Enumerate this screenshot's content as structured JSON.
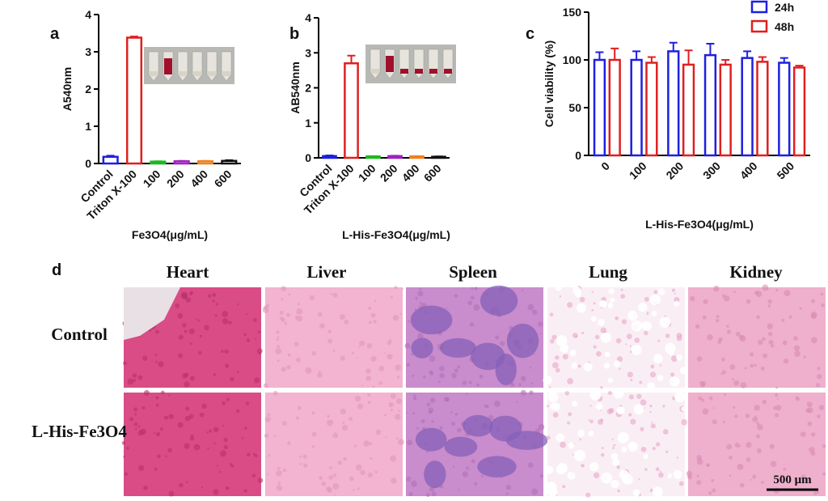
{
  "chart_data": [
    {
      "type": "bar",
      "panel": "a",
      "ylabel": "A540nm",
      "xlabel": "Fe3O4(μg/mL)",
      "categories": [
        "Control",
        "Triton X-100",
        "100",
        "200",
        "400",
        "600"
      ],
      "values": [
        0.18,
        3.38,
        0.05,
        0.06,
        0.06,
        0.07
      ],
      "errors": [
        0.03,
        0.03,
        0.01,
        0.01,
        0.01,
        0.02
      ],
      "colors": [
        "#1f1fe0",
        "#e01f1f",
        "#1fb81f",
        "#a020c0",
        "#f08020",
        "#111111"
      ],
      "ylim": [
        0,
        4
      ],
      "yticks": [
        0,
        1,
        2,
        3,
        4
      ]
    },
    {
      "type": "bar",
      "panel": "b",
      "ylabel": "AB540nm",
      "xlabel": "L-His-Fe3O4(μg/mL)",
      "categories": [
        "Control",
        "Triton X-100",
        "100",
        "200",
        "400",
        "600"
      ],
      "values": [
        0.05,
        2.7,
        0.04,
        0.05,
        0.04,
        0.03
      ],
      "errors": [
        0.02,
        0.22,
        0.01,
        0.01,
        0.01,
        0.01
      ],
      "colors": [
        "#1f1fe0",
        "#e01f1f",
        "#1fb81f",
        "#a020c0",
        "#f08020",
        "#111111"
      ],
      "ylim": [
        0,
        4
      ],
      "yticks": [
        0,
        1,
        2,
        3,
        4
      ]
    },
    {
      "type": "grouped_bar",
      "panel": "c",
      "ylabel": "Cell viability (%)",
      "xlabel": "L-His-Fe3O4(μg/mL)",
      "categories": [
        "0",
        "100",
        "200",
        "300",
        "400",
        "500"
      ],
      "series": [
        {
          "name": "24h",
          "color": "#1f1fe0",
          "values": [
            100,
            100,
            109,
            105,
            102,
            97
          ],
          "errors": [
            8,
            9,
            9,
            12,
            7,
            5
          ]
        },
        {
          "name": "48h",
          "color": "#e01f1f",
          "values": [
            100,
            97,
            95,
            95,
            98,
            92
          ],
          "errors": [
            12,
            6,
            15,
            5,
            5,
            2
          ]
        }
      ],
      "ylim": [
        0,
        150
      ],
      "yticks": [
        0,
        50,
        100,
        150
      ],
      "legend": "upper right"
    }
  ],
  "histology": {
    "panel": "d",
    "columns": [
      "Heart",
      "Liver",
      "Spleen",
      "Lung",
      "Kidney"
    ],
    "rows": [
      "Control",
      "L-His-Fe3O4"
    ],
    "scale_bar": "500 μm"
  }
}
